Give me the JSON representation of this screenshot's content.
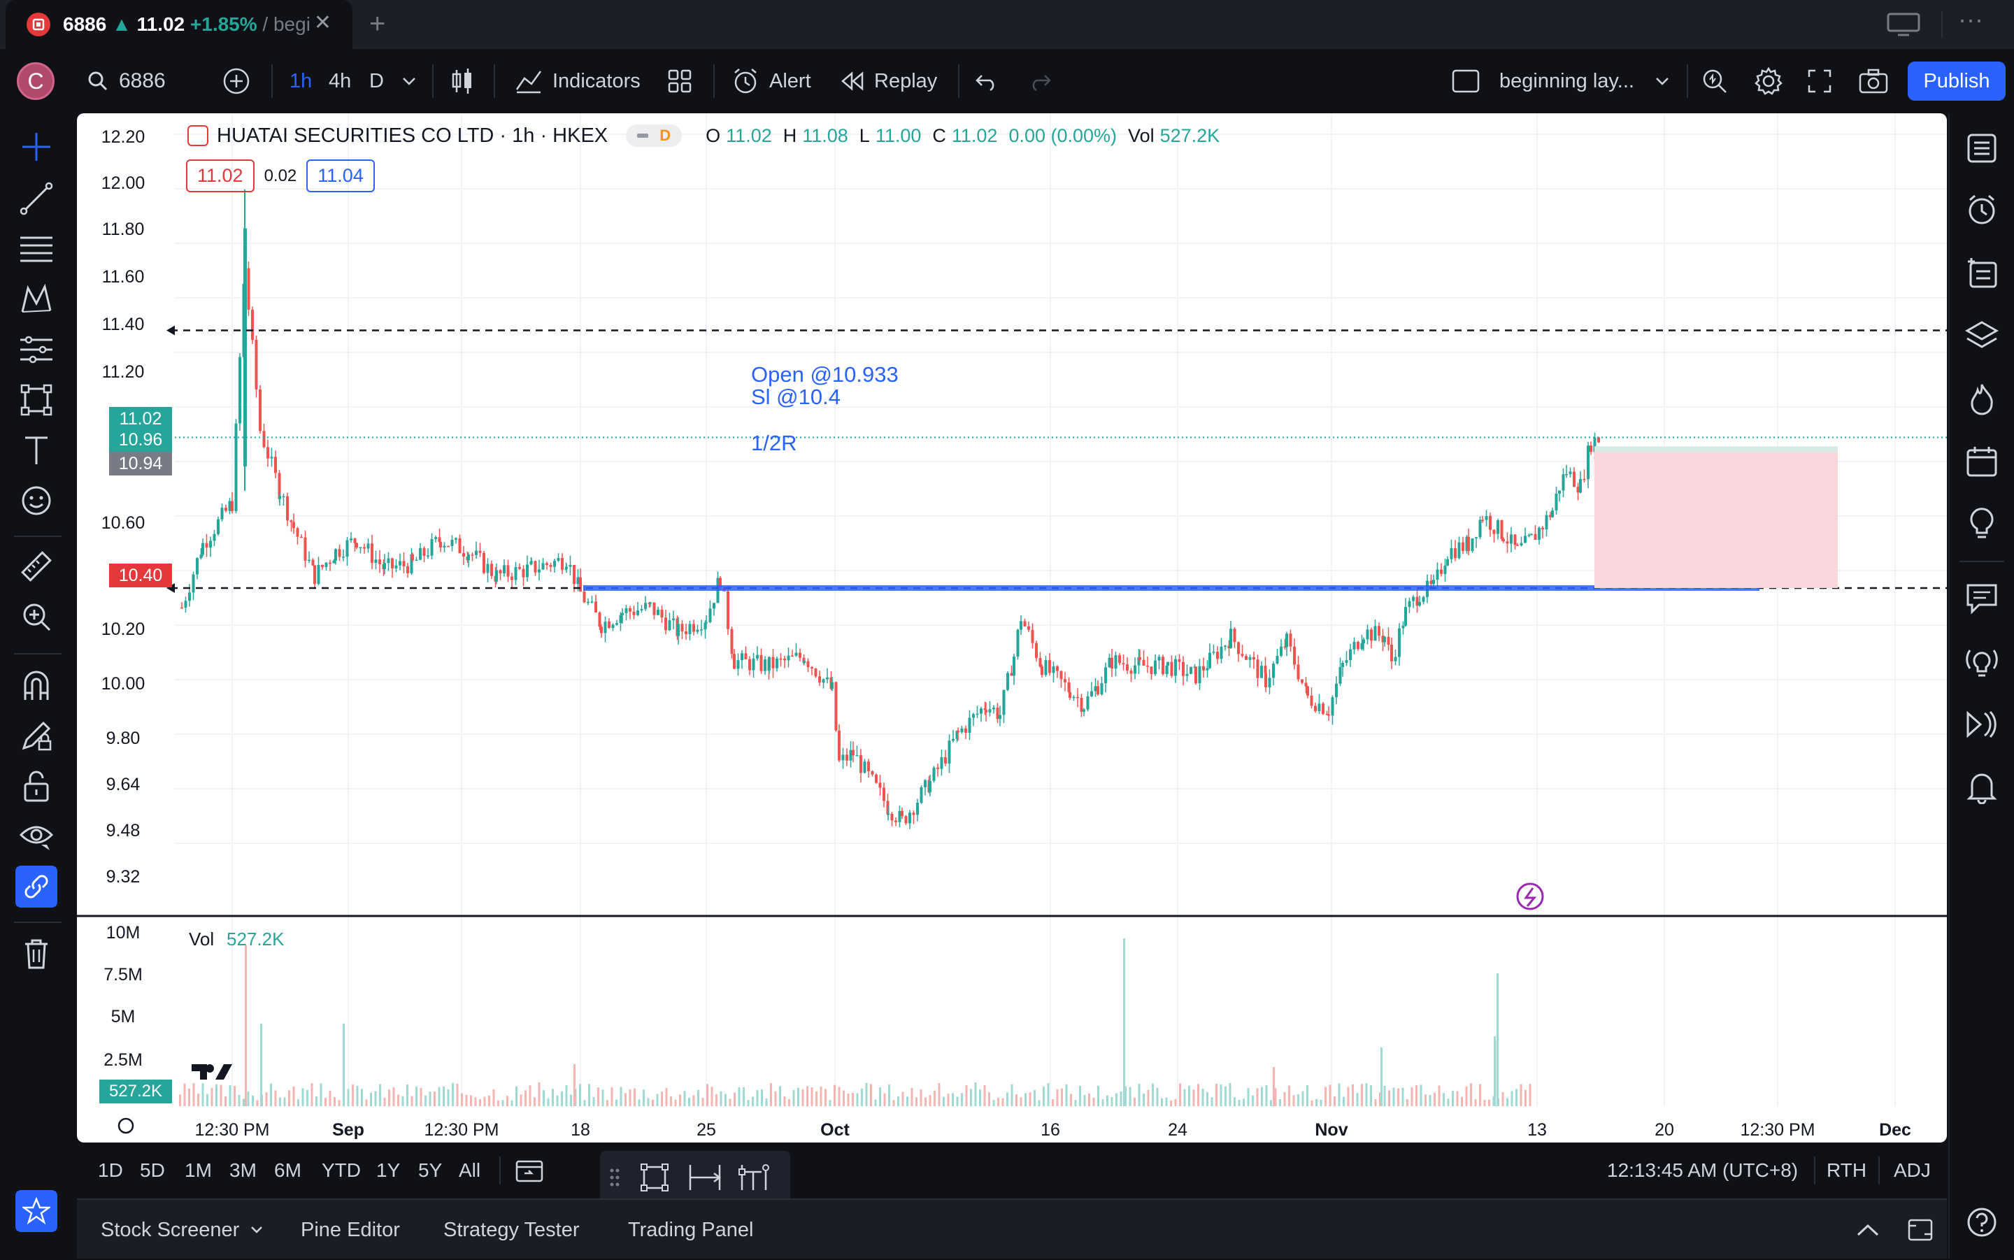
{
  "browser_tab": {
    "symbol": "6886",
    "arrow": "▲",
    "price": "11.02",
    "change": "+1.85%",
    "rest": "/ begi"
  },
  "toolbar": {
    "avatar_letter": "C",
    "symbol": "6886",
    "intervals": [
      "1h",
      "4h",
      "D"
    ],
    "active_interval": "1h",
    "indicators_label": "Indicators",
    "alert_label": "Alert",
    "replay_label": "Replay",
    "layout_name": "beginning lay...",
    "publish_label": "Publish"
  },
  "legend": {
    "title": "HUATAI SECURITIES CO LTD · 1h · HKEX",
    "badge": "D",
    "open_key": "O",
    "open": "11.02",
    "high_key": "H",
    "high": "11.08",
    "low_key": "L",
    "low": "11.00",
    "close_key": "C",
    "close": "11.02",
    "change": "0.00 (0.00%)",
    "vol_key": "Vol",
    "vol": "527.2K"
  },
  "order_box": {
    "sell": "11.02",
    "spread": "0.02",
    "buy": "11.04"
  },
  "annotations": {
    "line1": "Open @10.933",
    "line2": "Sl @10.4",
    "line3": "1/2R"
  },
  "price_axis": {
    "labels": [
      "12.20",
      "12.00",
      "11.80",
      "11.60",
      "11.40",
      "11.20",
      "10.60",
      "10.20",
      "10.00",
      "9.80",
      "9.64",
      "9.48",
      "9.32"
    ],
    "tag_last": "11.02",
    "tag_bid": "10.96",
    "tag_gray": "10.94",
    "tag_sl": "10.40"
  },
  "volume_pane": {
    "label": "Vol",
    "value": "527.2K",
    "axis_labels": [
      "10M",
      "7.5M",
      "5M",
      "2.5M"
    ],
    "tag": "527.2K"
  },
  "time_axis": {
    "labels": [
      "12:30 PM",
      "Sep",
      "12:30 PM",
      "18",
      "25",
      "Oct",
      "16",
      "24",
      "Nov",
      "13",
      "20",
      "12:30 PM",
      "Dec"
    ]
  },
  "range_bar": {
    "ranges": [
      "1D",
      "5D",
      "1M",
      "3M",
      "6M",
      "YTD",
      "1Y",
      "5Y",
      "All"
    ],
    "clock": "12:13:45 AM (UTC+8)",
    "session": "RTH",
    "adj": "ADJ"
  },
  "bottom_panel": {
    "tabs": [
      "Stock Screener",
      "Pine Editor",
      "Strategy Tester",
      "Trading Panel"
    ]
  },
  "colors": {
    "up": "#26a69a",
    "down": "#ef5350",
    "accent": "#2962ff",
    "toolbar_bg": "#0f1117"
  },
  "chart_data": {
    "type": "candlestick",
    "title": "HUATAI SECURITIES CO LTD · 1h · HKEX",
    "ylim": [
      9.2,
      12.25
    ],
    "horizontal_lines": [
      11.46,
      10.4
    ],
    "last_price": 11.02,
    "volume_last": "527.2K"
  }
}
